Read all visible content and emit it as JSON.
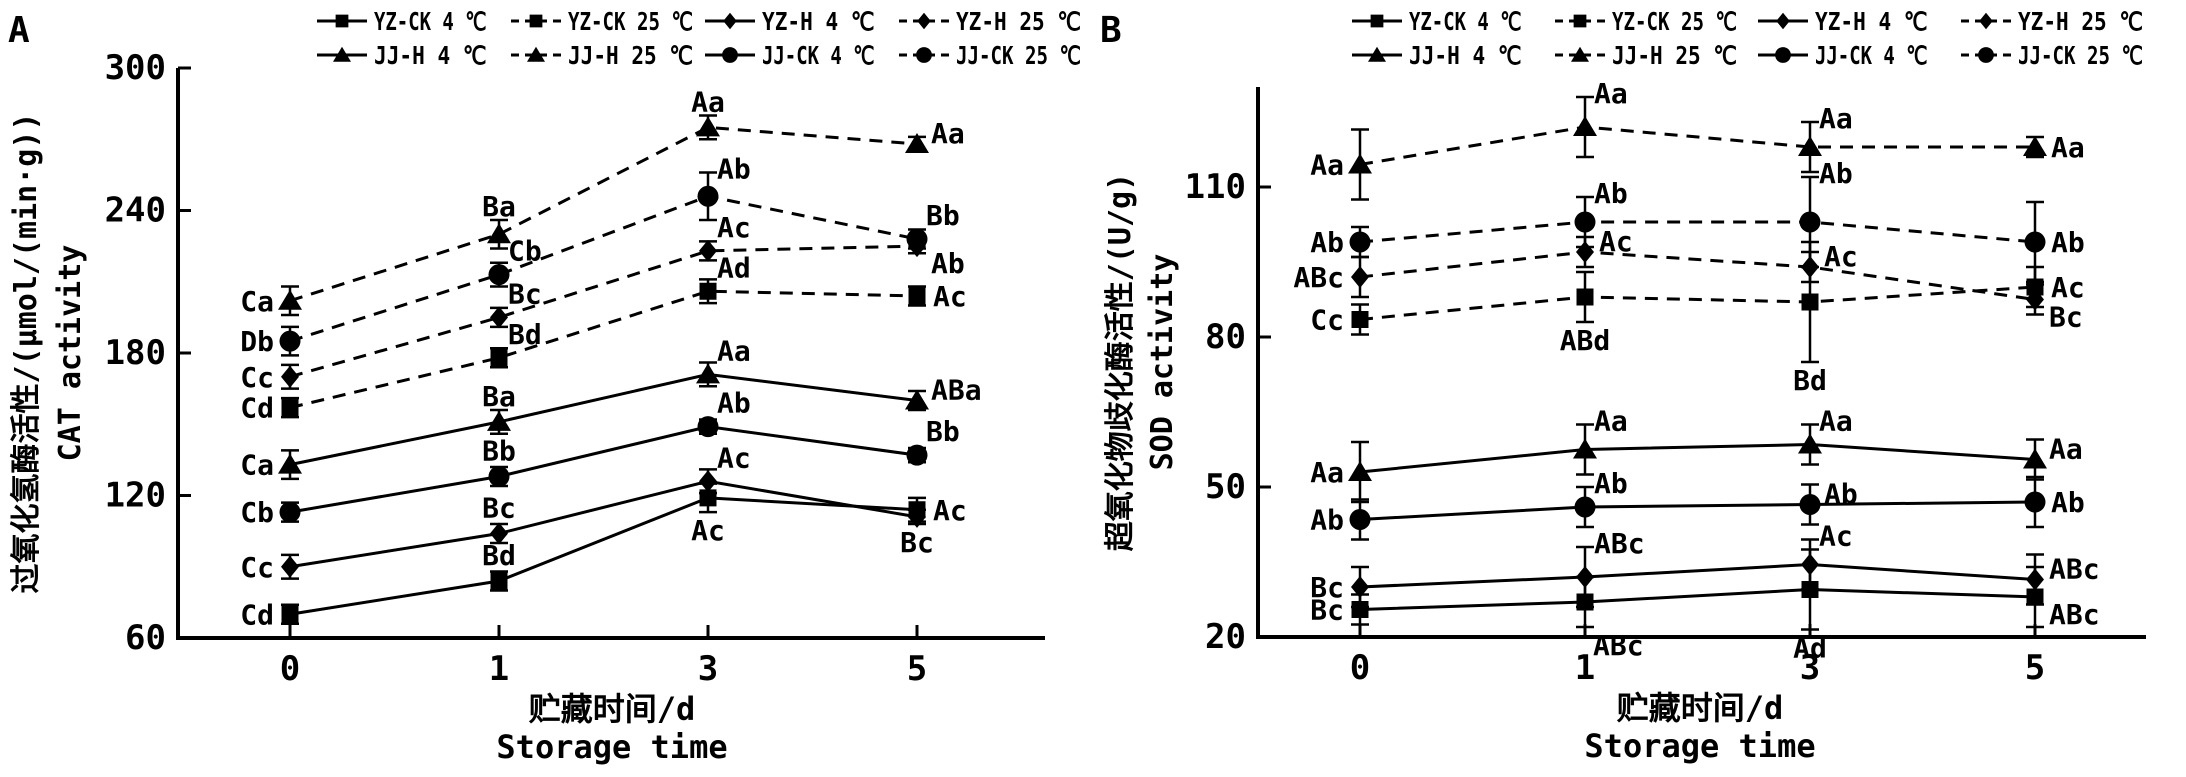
{
  "figure": {
    "background": "#ffffff",
    "ink_color": "#000000",
    "panels": [
      {
        "panel_letter": "A",
        "y_axis_label_cn": "过氧化氢酶活性/(μmol/(min·g))",
        "y_axis_label_en": "CAT activity",
        "x_axis_label_cn": "贮藏时间/d",
        "x_axis_label_en": "Storage time"
      },
      {
        "panel_letter": "B",
        "y_axis_label_cn": "超氧化物歧化酶活性/(U/g)",
        "y_axis_label_en": "SOD activity",
        "x_axis_label_cn": "贮藏时间/d",
        "x_axis_label_en": "Storage time"
      }
    ],
    "legend_rows": [
      [
        "YZ-CK 4 ℃",
        "YZ-CK 25 ℃",
        "YZ-H  4 ℃",
        "YZ-H  25 ℃"
      ],
      [
        "JJ-H  4 ℃",
        "JJ-H  25 ℃",
        "JJ-CK 4 ℃",
        "JJ-CK 25 ℃"
      ]
    ]
  },
  "chart_data": [
    {
      "type": "line",
      "panel": "A",
      "title": "",
      "xlabel": "贮藏时间/d Storage time",
      "ylabel": "过氧化氢酶活性/(μmol/(min·g)) CAT activity",
      "x": [
        0,
        1,
        3,
        5
      ],
      "xtick_labels": [
        "0",
        "1",
        "3",
        "5"
      ],
      "ylim": [
        60,
        300
      ],
      "yticks": [
        60,
        120,
        180,
        240,
        300
      ],
      "grid": false,
      "legend_position": "top",
      "series": [
        {
          "name": "YZ-CK 4 ℃",
          "marker": "square",
          "line": "solid",
          "values": [
            70,
            84,
            119,
            114
          ],
          "errors": [
            4,
            4,
            6,
            5
          ],
          "point_labels": [
            "Cd",
            "Bd",
            "Ac",
            "Ac"
          ],
          "label_pos": [
            "left",
            "above",
            "below",
            "right"
          ]
        },
        {
          "name": "YZ-CK 25 ℃",
          "marker": "square",
          "line": "dashed",
          "values": [
            157,
            178,
            206,
            204
          ],
          "errors": [
            4,
            4,
            5,
            4
          ],
          "point_labels": [
            "Cd",
            "Bd",
            "Ad",
            "Ac"
          ],
          "label_pos": [
            "left",
            "above-right",
            "above-right",
            "right"
          ]
        },
        {
          "name": "YZ-H 4 ℃",
          "marker": "diamond",
          "line": "solid",
          "values": [
            90,
            104,
            126,
            111
          ],
          "errors": [
            5,
            4,
            5,
            3
          ],
          "point_labels": [
            "Cc",
            "Bc",
            "Ac",
            "Bc"
          ],
          "label_pos": [
            "left",
            "above",
            "above-right",
            "below"
          ]
        },
        {
          "name": "YZ-H 25 ℃",
          "marker": "diamond",
          "line": "dashed",
          "values": [
            170,
            195,
            223,
            225
          ],
          "errors": [
            5,
            4,
            4,
            3
          ],
          "point_labels": [
            "Cc",
            "Bc",
            "Ac",
            "Ab"
          ],
          "label_pos": [
            "left",
            "above-right",
            "above-right",
            "right-down"
          ]
        },
        {
          "name": "JJ-H 4 ℃",
          "marker": "triangle",
          "line": "solid",
          "values": [
            133,
            151,
            171,
            160
          ],
          "errors": [
            6,
            5,
            5,
            4
          ],
          "point_labels": [
            "Ca",
            "Ba",
            "Aa",
            "ABa"
          ],
          "label_pos": [
            "left",
            "above",
            "above-right",
            "right-up"
          ]
        },
        {
          "name": "JJ-H 25 ℃",
          "marker": "triangle",
          "line": "dashed",
          "values": [
            202,
            230,
            275,
            268
          ],
          "errors": [
            6,
            6,
            5,
            3
          ],
          "point_labels": [
            "Ca",
            "Ba",
            "Aa",
            "Aa"
          ],
          "label_pos": [
            "left",
            "above",
            "above",
            "right-up"
          ]
        },
        {
          "name": "JJ-CK 4 ℃",
          "marker": "circle",
          "line": "solid",
          "values": [
            113,
            128,
            149,
            137
          ],
          "errors": [
            4,
            4,
            3,
            3
          ],
          "point_labels": [
            "Cb",
            "Bb",
            "Ab",
            "Bb"
          ],
          "label_pos": [
            "left",
            "above",
            "above-right",
            "above-right"
          ]
        },
        {
          "name": "JJ-CK 25 ℃",
          "marker": "circle",
          "line": "dashed",
          "values": [
            185,
            213,
            246,
            228
          ],
          "errors": [
            6,
            5,
            10,
            4
          ],
          "point_labels": [
            "Db",
            "Cb",
            "Ab",
            "Bb"
          ],
          "label_pos": [
            "left",
            "above-right",
            "above-right",
            "above-right"
          ]
        }
      ]
    },
    {
      "type": "line",
      "panel": "B",
      "title": "",
      "xlabel": "贮藏时间/d Storage time",
      "ylabel": "超氧化物歧化酶活性/(U/g) SOD activity",
      "x": [
        0,
        1,
        3,
        5
      ],
      "xtick_labels": [
        "0",
        "1",
        "3",
        "5"
      ],
      "ylim": [
        20,
        130
      ],
      "yticks": [
        20,
        50,
        80,
        110
      ],
      "grid": false,
      "legend_position": "top",
      "series": [
        {
          "name": "YZ-CK 4 ℃",
          "marker": "square",
          "line": "solid",
          "values": [
            25.5,
            27,
            29.5,
            28
          ],
          "errors": [
            3,
            5,
            8,
            6
          ],
          "point_labels": [
            "Bc",
            "ABc",
            "Ad",
            "ABc"
          ],
          "label_pos": [
            "left",
            "below-right",
            "below",
            "right-down"
          ]
        },
        {
          "name": "YZ-CK 25 ℃",
          "marker": "square",
          "line": "dashed",
          "values": [
            83.5,
            88,
            87,
            90
          ],
          "errors": [
            3,
            5,
            12,
            4
          ],
          "point_labels": [
            "Cc",
            "ABd",
            "Bd",
            "Ac"
          ],
          "label_pos": [
            "left",
            "below",
            "below",
            "right"
          ]
        },
        {
          "name": "YZ-H 4 ℃",
          "marker": "diamond",
          "line": "solid",
          "values": [
            30,
            32,
            34.5,
            31.5
          ],
          "errors": [
            4,
            6,
            5,
            5
          ],
          "point_labels": [
            "Bc",
            "ABc",
            "Ac",
            "ABc"
          ],
          "label_pos": [
            "left",
            "above-right",
            "above-right",
            "right-up"
          ]
        },
        {
          "name": "YZ-H 25 ℃",
          "marker": "diamond",
          "line": "dashed",
          "values": [
            92,
            97,
            94,
            87.5
          ],
          "errors": [
            4,
            3,
            3,
            3
          ],
          "point_labels": [
            "ABc",
            "Ac",
            "Ac",
            "Bc"
          ],
          "label_pos": [
            "left",
            "right-up",
            "right-up",
            "right-down"
          ]
        },
        {
          "name": "JJ-H 4 ℃",
          "marker": "triangle",
          "line": "solid",
          "values": [
            53,
            57.5,
            58.5,
            55.5
          ],
          "errors": [
            6,
            5,
            4,
            4
          ],
          "point_labels": [
            "Aa",
            "Aa",
            "Aa",
            "Aa"
          ],
          "label_pos": [
            "left",
            "above-right",
            "above-right",
            "right-up"
          ]
        },
        {
          "name": "JJ-H 25 ℃",
          "marker": "triangle",
          "line": "dashed",
          "values": [
            114.5,
            122,
            118,
            118
          ],
          "errors": [
            7,
            6,
            5,
            2
          ],
          "point_labels": [
            "Aa",
            "Aa",
            "Aa",
            "Aa"
          ],
          "label_pos": [
            "left",
            "above-right",
            "above-right",
            "right"
          ]
        },
        {
          "name": "JJ-CK 4 ℃",
          "marker": "circle",
          "line": "solid",
          "values": [
            43.5,
            46,
            46.5,
            47
          ],
          "errors": [
            4,
            4,
            4,
            5
          ],
          "point_labels": [
            "Ab",
            "Ab",
            "Ab",
            "Ab"
          ],
          "label_pos": [
            "left",
            "above-right",
            "right-up",
            "right"
          ]
        },
        {
          "name": "JJ-CK 25 ℃",
          "marker": "circle",
          "line": "dashed",
          "values": [
            99,
            103,
            103,
            99
          ],
          "errors": [
            3,
            5,
            9,
            8
          ],
          "point_labels": [
            "Ab",
            "Ab",
            "Ab",
            "Ab"
          ],
          "label_pos": [
            "left",
            "above-right",
            "above-right",
            "right"
          ]
        }
      ]
    }
  ]
}
